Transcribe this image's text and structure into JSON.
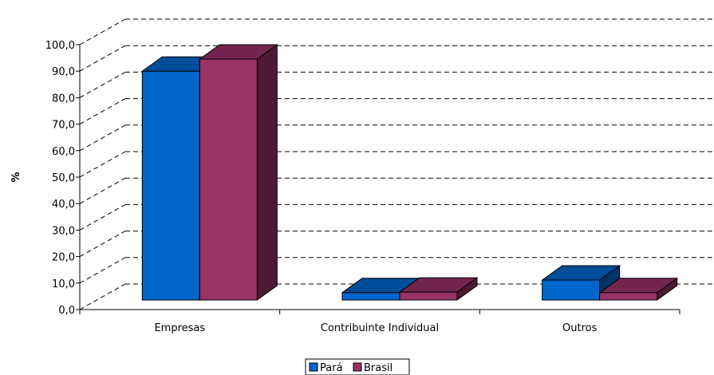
{
  "chart_data": {
    "type": "bar",
    "title": "",
    "xlabel": "",
    "ylabel": "%",
    "ylim": [
      0,
      100
    ],
    "ytick_step": 10,
    "ytick_labels": [
      "0,0",
      "10,0",
      "20,0",
      "30,0",
      "40,0",
      "50,0",
      "60,0",
      "70,0",
      "80,0",
      "90,0",
      "100,0"
    ],
    "categories": [
      "Empresas",
      "Contribuinte Individual",
      "Outros"
    ],
    "series": [
      {
        "name": "Pará",
        "values": [
          90.5,
          2.9,
          7.9
        ],
        "color": "#0066cc"
      },
      {
        "name": "Brasil",
        "values": [
          95.3,
          3.1,
          2.9
        ],
        "color": "#993366"
      }
    ],
    "grid": true,
    "three_d": true,
    "legend_position": "bottom"
  }
}
